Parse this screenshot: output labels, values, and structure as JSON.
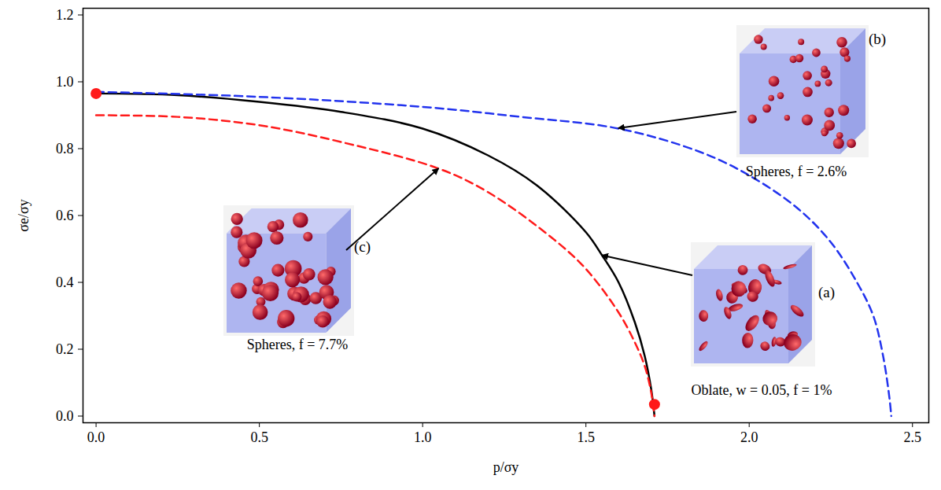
{
  "chart_data": {
    "type": "line",
    "xlabel": "p/σy",
    "ylabel": "σe/σy",
    "xlim": [
      -0.04,
      2.55
    ],
    "ylim": [
      -0.02,
      1.22
    ],
    "xticks": [
      {
        "value": 0,
        "label": "0.0"
      },
      {
        "value": 0.5,
        "label": "0.5"
      },
      {
        "value": 1,
        "label": "1.0"
      },
      {
        "value": 1.5,
        "label": "1.5"
      },
      {
        "value": 2,
        "label": "2.0"
      },
      {
        "value": 2.5,
        "label": "2.5"
      }
    ],
    "yticks": [
      {
        "value": 0,
        "label": "0.0"
      },
      {
        "value": 0.2,
        "label": "0.2"
      },
      {
        "value": 0.4,
        "label": "0.4"
      },
      {
        "value": 0.6,
        "label": "0.6"
      },
      {
        "value": 0.8,
        "label": "0.8"
      },
      {
        "value": 1,
        "label": "1.0"
      },
      {
        "value": 1.2,
        "label": "1.2"
      }
    ],
    "grid": false,
    "series": [
      {
        "name": "Oblate, w = 0.05, f = 1%",
        "label": "(a)",
        "type": "line",
        "color": "#000000",
        "line_style": "solid",
        "x": [
          0,
          0.25,
          0.5,
          0.75,
          1.0,
          1.2,
          1.35,
          1.5,
          1.55,
          1.6,
          1.65,
          1.68,
          1.7,
          1.71
        ],
        "values": [
          0.965,
          0.96,
          0.94,
          0.91,
          0.86,
          0.78,
          0.69,
          0.55,
          0.48,
          0.4,
          0.28,
          0.18,
          0.08,
          0.0
        ]
      },
      {
        "name": "Spheres, f = 2.6%",
        "label": "(b)",
        "type": "line",
        "color": "#2233ee",
        "line_style": "dashed",
        "x": [
          0,
          0.5,
          1.0,
          1.3,
          1.6,
          1.85,
          2.0,
          2.15,
          2.25,
          2.33,
          2.38,
          2.41,
          2.43,
          2.435
        ],
        "values": [
          0.97,
          0.955,
          0.925,
          0.895,
          0.86,
          0.79,
          0.72,
          0.62,
          0.52,
          0.4,
          0.3,
          0.18,
          0.05,
          0.0
        ]
      },
      {
        "name": "Spheres, f = 7.7%",
        "label": "(c)",
        "type": "line",
        "color": "#ff1a1a",
        "line_style": "dashed",
        "x": [
          0,
          0.25,
          0.5,
          0.75,
          1.05,
          1.2,
          1.4,
          1.5,
          1.6,
          1.65,
          1.68,
          1.7,
          1.71
        ],
        "values": [
          0.9,
          0.895,
          0.87,
          0.82,
          0.74,
          0.67,
          0.53,
          0.44,
          0.31,
          0.22,
          0.15,
          0.07,
          0.0
        ]
      },
      {
        "type": "scatter",
        "marker": "circle",
        "color": "#ff1a1a",
        "x": [
          0,
          1.71
        ],
        "values": [
          0.965,
          0.035
        ]
      }
    ]
  }
}
